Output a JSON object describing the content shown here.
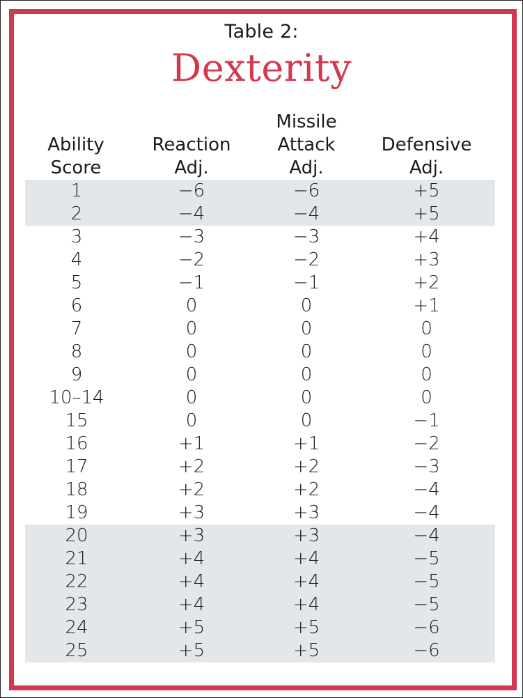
{
  "table_label": "Table 2:",
  "table_title": "Dexterity",
  "colors": {
    "accent": "#d4384e",
    "shade": "#e3e7ea"
  },
  "headers": [
    "Ability\nScore",
    "Reaction\nAdj.",
    "Missile\nAttack\nAdj.",
    "Defensive\nAdj."
  ],
  "rows": [
    {
      "score": "1",
      "reaction": "−6",
      "missile": "−6",
      "defensive": "+5",
      "shaded": true
    },
    {
      "score": "2",
      "reaction": "−4",
      "missile": "−4",
      "defensive": "+5",
      "shaded": true
    },
    {
      "score": "3",
      "reaction": "−3",
      "missile": "−3",
      "defensive": "+4",
      "shaded": false
    },
    {
      "score": "4",
      "reaction": "−2",
      "missile": "−2",
      "defensive": "+3",
      "shaded": false
    },
    {
      "score": "5",
      "reaction": "−1",
      "missile": "−1",
      "defensive": "+2",
      "shaded": false
    },
    {
      "score": "6",
      "reaction": "0",
      "missile": "0",
      "defensive": "+1",
      "shaded": false
    },
    {
      "score": "7",
      "reaction": "0",
      "missile": "0",
      "defensive": "0",
      "shaded": false
    },
    {
      "score": "8",
      "reaction": "0",
      "missile": "0",
      "defensive": "0",
      "shaded": false
    },
    {
      "score": "9",
      "reaction": "0",
      "missile": "0",
      "defensive": "0",
      "shaded": false
    },
    {
      "score": "10–14",
      "reaction": "0",
      "missile": "0",
      "defensive": "0",
      "shaded": false
    },
    {
      "score": "15",
      "reaction": "0",
      "missile": "0",
      "defensive": "−1",
      "shaded": false
    },
    {
      "score": "16",
      "reaction": "+1",
      "missile": "+1",
      "defensive": "−2",
      "shaded": false
    },
    {
      "score": "17",
      "reaction": "+2",
      "missile": "+2",
      "defensive": "−3",
      "shaded": false
    },
    {
      "score": "18",
      "reaction": "+2",
      "missile": "+2",
      "defensive": "−4",
      "shaded": false
    },
    {
      "score": "19",
      "reaction": "+3",
      "missile": "+3",
      "defensive": "−4",
      "shaded": false
    },
    {
      "score": "20",
      "reaction": "+3",
      "missile": "+3",
      "defensive": "−4",
      "shaded": true
    },
    {
      "score": "21",
      "reaction": "+4",
      "missile": "+4",
      "defensive": "−5",
      "shaded": true
    },
    {
      "score": "22",
      "reaction": "+4",
      "missile": "+4",
      "defensive": "−5",
      "shaded": true
    },
    {
      "score": "23",
      "reaction": "+4",
      "missile": "+4",
      "defensive": "−5",
      "shaded": true
    },
    {
      "score": "24",
      "reaction": "+5",
      "missile": "+5",
      "defensive": "−6",
      "shaded": true
    },
    {
      "score": "25",
      "reaction": "+5",
      "missile": "+5",
      "defensive": "−6",
      "shaded": true
    }
  ]
}
